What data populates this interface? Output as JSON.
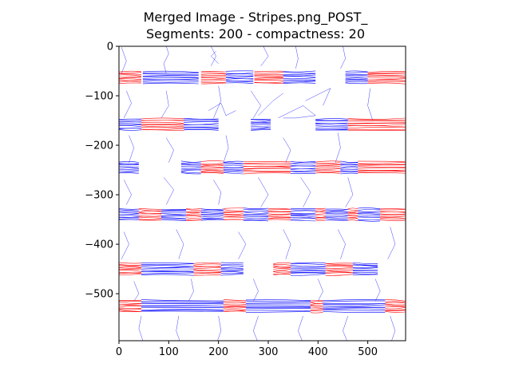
{
  "chart_data": {
    "type": "line",
    "title_lines": [
      "Merged Image - Stripes.png_POST_",
      "Segments: 200 - compactness: 20"
    ],
    "xlabel": "",
    "ylabel": "",
    "xlim": [
      0,
      576
    ],
    "ylim": [
      -595,
      0
    ],
    "x_ticks": [
      0,
      100,
      200,
      300,
      400,
      500
    ],
    "x_tick_labels": [
      "0",
      "100",
      "200",
      "300",
      "400",
      "500"
    ],
    "y_ticks": [
      0,
      -100,
      -200,
      -300,
      -400,
      -500
    ],
    "y_tick_labels": [
      "0",
      "−100",
      "−200",
      "−300",
      "−400",
      "−500"
    ],
    "grid": false,
    "legend": "none",
    "stripe_bands": [
      {
        "y": -63,
        "segments": [
          [
            0,
            45,
            "#ff0000"
          ],
          [
            48,
            160,
            "#0000ff"
          ],
          [
            165,
            215,
            "#ff0000"
          ],
          [
            215,
            270,
            "#0000ff"
          ],
          [
            272,
            330,
            "#ff0000"
          ],
          [
            330,
            395,
            "#0000ff"
          ],
          [
            455,
            500,
            "#0000ff"
          ],
          [
            500,
            575,
            "#ff0000"
          ]
        ]
      },
      {
        "y": -158,
        "segments": [
          [
            0,
            45,
            "#0000ff"
          ],
          [
            45,
            130,
            "#ff0000"
          ],
          [
            130,
            200,
            "#0000ff"
          ],
          [
            265,
            305,
            "#0000ff"
          ],
          [
            395,
            460,
            "#0000ff"
          ],
          [
            460,
            575,
            "#ff0000"
          ]
        ]
      },
      {
        "y": -245,
        "segments": [
          [
            0,
            40,
            "#0000ff"
          ],
          [
            125,
            165,
            "#0000ff"
          ],
          [
            165,
            210,
            "#ff0000"
          ],
          [
            210,
            250,
            "#0000ff"
          ],
          [
            250,
            345,
            "#ff0000"
          ],
          [
            345,
            395,
            "#0000ff"
          ],
          [
            395,
            445,
            "#ff0000"
          ],
          [
            445,
            480,
            "#0000ff"
          ],
          [
            480,
            575,
            "#ff0000"
          ]
        ]
      },
      {
        "y": -340,
        "segments": [
          [
            0,
            40,
            "#0000ff"
          ],
          [
            40,
            85,
            "#ff0000"
          ],
          [
            85,
            135,
            "#0000ff"
          ],
          [
            135,
            165,
            "#ff0000"
          ],
          [
            165,
            210,
            "#0000ff"
          ],
          [
            210,
            250,
            "#ff0000"
          ],
          [
            250,
            300,
            "#0000ff"
          ],
          [
            300,
            345,
            "#ff0000"
          ],
          [
            345,
            395,
            "#0000ff"
          ],
          [
            395,
            415,
            "#ff0000"
          ],
          [
            415,
            460,
            "#0000ff"
          ],
          [
            460,
            480,
            "#ff0000"
          ],
          [
            480,
            525,
            "#0000ff"
          ],
          [
            525,
            575,
            "#ff0000"
          ]
        ]
      },
      {
        "y": -450,
        "segments": [
          [
            0,
            45,
            "#ff0000"
          ],
          [
            45,
            150,
            "#0000ff"
          ],
          [
            150,
            205,
            "#ff0000"
          ],
          [
            205,
            250,
            "#0000ff"
          ],
          [
            310,
            345,
            "#ff0000"
          ],
          [
            345,
            415,
            "#0000ff"
          ],
          [
            415,
            470,
            "#ff0000"
          ],
          [
            470,
            520,
            "#0000ff"
          ]
        ]
      },
      {
        "y": -525,
        "segments": [
          [
            0,
            45,
            "#ff0000"
          ],
          [
            45,
            210,
            "#0000ff"
          ],
          [
            210,
            255,
            "#ff0000"
          ],
          [
            255,
            385,
            "#0000ff"
          ],
          [
            385,
            410,
            "#ff0000"
          ],
          [
            410,
            535,
            "#0000ff"
          ],
          [
            535,
            575,
            "#ff0000"
          ]
        ]
      }
    ],
    "contours": [
      [
        [
          5,
          -2
        ],
        [
          15,
          -30
        ],
        [
          5,
          -55
        ]
      ],
      [
        [
          95,
          0
        ],
        [
          100,
          -15
        ],
        [
          90,
          -35
        ],
        [
          95,
          -55
        ]
      ],
      [
        [
          185,
          0
        ],
        [
          195,
          -20
        ],
        [
          185,
          -40
        ]
      ],
      [
        [
          290,
          0
        ],
        [
          300,
          -20
        ],
        [
          285,
          -40
        ]
      ],
      [
        [
          355,
          0
        ],
        [
          360,
          -25
        ],
        [
          355,
          -45
        ]
      ],
      [
        [
          450,
          0
        ],
        [
          455,
          -25
        ],
        [
          445,
          -45
        ]
      ],
      [
        [
          15,
          -90
        ],
        [
          25,
          -115
        ],
        [
          10,
          -145
        ]
      ],
      [
        [
          95,
          -90
        ],
        [
          100,
          -120
        ],
        [
          85,
          -145
        ]
      ],
      [
        [
          200,
          -80
        ],
        [
          205,
          -110
        ],
        [
          190,
          -145
        ]
      ],
      [
        [
          265,
          -90
        ],
        [
          285,
          -120
        ],
        [
          270,
          -145
        ]
      ],
      [
        [
          505,
          -85
        ],
        [
          500,
          -120
        ],
        [
          510,
          -150
        ]
      ],
      [
        [
          20,
          -180
        ],
        [
          30,
          -205
        ],
        [
          20,
          -235
        ]
      ],
      [
        [
          95,
          -185
        ],
        [
          110,
          -210
        ],
        [
          100,
          -235
        ]
      ],
      [
        [
          215,
          -180
        ],
        [
          220,
          -205
        ],
        [
          210,
          -235
        ]
      ],
      [
        [
          330,
          -185
        ],
        [
          345,
          -210
        ],
        [
          335,
          -235
        ]
      ],
      [
        [
          440,
          -175
        ],
        [
          445,
          -205
        ],
        [
          435,
          -235
        ]
      ],
      [
        [
          10,
          -270
        ],
        [
          25,
          -300
        ],
        [
          15,
          -320
        ]
      ],
      [
        [
          90,
          -265
        ],
        [
          110,
          -290
        ],
        [
          95,
          -320
        ]
      ],
      [
        [
          190,
          -270
        ],
        [
          205,
          -295
        ],
        [
          200,
          -320
        ]
      ],
      [
        [
          280,
          -265
        ],
        [
          300,
          -300
        ],
        [
          285,
          -325
        ]
      ],
      [
        [
          365,
          -265
        ],
        [
          385,
          -295
        ],
        [
          370,
          -325
        ]
      ],
      [
        [
          460,
          -265
        ],
        [
          470,
          -300
        ],
        [
          455,
          -325
        ]
      ],
      [
        [
          10,
          -375
        ],
        [
          20,
          -400
        ],
        [
          5,
          -430
        ]
      ],
      [
        [
          115,
          -370
        ],
        [
          130,
          -400
        ],
        [
          120,
          -430
        ]
      ],
      [
        [
          240,
          -375
        ],
        [
          255,
          -400
        ],
        [
          240,
          -430
        ]
      ],
      [
        [
          330,
          -370
        ],
        [
          345,
          -400
        ],
        [
          335,
          -430
        ]
      ],
      [
        [
          440,
          -370
        ],
        [
          455,
          -400
        ],
        [
          445,
          -430
        ]
      ],
      [
        [
          545,
          -365
        ],
        [
          555,
          -400
        ],
        [
          540,
          -430
        ]
      ],
      [
        [
          30,
          -475
        ],
        [
          40,
          -500
        ],
        [
          30,
          -515
        ]
      ],
      [
        [
          145,
          -470
        ],
        [
          150,
          -495
        ],
        [
          140,
          -515
        ]
      ],
      [
        [
          270,
          -470
        ],
        [
          280,
          -495
        ],
        [
          270,
          -515
        ]
      ],
      [
        [
          400,
          -470
        ],
        [
          410,
          -495
        ],
        [
          400,
          -515
        ]
      ],
      [
        [
          515,
          -470
        ],
        [
          525,
          -495
        ],
        [
          515,
          -515
        ]
      ],
      [
        [
          45,
          -545
        ],
        [
          40,
          -570
        ],
        [
          48,
          -595
        ]
      ],
      [
        [
          120,
          -545
        ],
        [
          115,
          -575
        ],
        [
          122,
          -595
        ]
      ],
      [
        [
          200,
          -545
        ],
        [
          205,
          -575
        ],
        [
          198,
          -595
        ]
      ],
      [
        [
          280,
          -545
        ],
        [
          270,
          -575
        ],
        [
          278,
          -595
        ]
      ],
      [
        [
          370,
          -545
        ],
        [
          360,
          -575
        ],
        [
          368,
          -595
        ]
      ],
      [
        [
          460,
          -545
        ],
        [
          450,
          -575
        ],
        [
          458,
          -595
        ]
      ],
      [
        [
          545,
          -545
        ],
        [
          555,
          -575
        ],
        [
          548,
          -595
        ]
      ],
      [
        [
          180,
          -130
        ],
        [
          205,
          -115
        ],
        [
          215,
          -140
        ],
        [
          235,
          -130
        ]
      ],
      [
        [
          280,
          -140
        ],
        [
          310,
          -110
        ],
        [
          330,
          -95
        ]
      ],
      [
        [
          320,
          -145
        ],
        [
          370,
          -120
        ],
        [
          395,
          -140
        ],
        [
          355,
          -145
        ],
        [
          330,
          -145
        ]
      ],
      [
        [
          375,
          -110
        ],
        [
          425,
          -85
        ],
        [
          410,
          -120
        ]
      ],
      [
        [
          195,
          -10
        ],
        [
          185,
          -20
        ],
        [
          200,
          -35
        ]
      ]
    ]
  }
}
